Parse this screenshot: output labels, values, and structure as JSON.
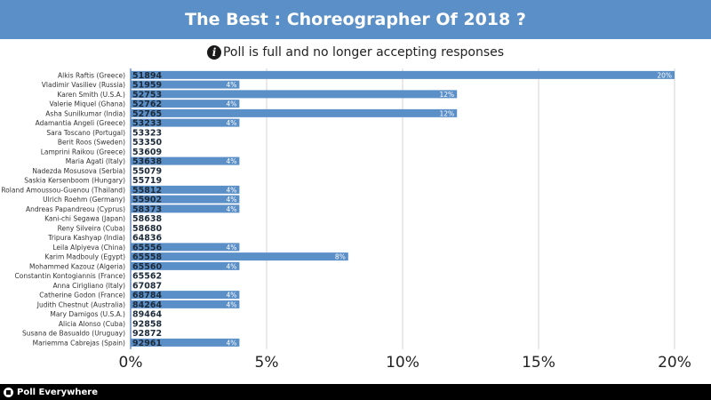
{
  "header": {
    "title": "The Best : Choreographer Of 2018 ?"
  },
  "notice": {
    "icon": "info-icon",
    "text": "Poll is full and no longer accepting responses"
  },
  "footer": {
    "brand": "Poll Everywhere",
    "icon": "poll-everywhere-logo-icon"
  },
  "colors": {
    "accent": "#5b8fc7",
    "footer": "#000000"
  },
  "chart_data": {
    "type": "bar",
    "orientation": "horizontal",
    "xlim": [
      0,
      20
    ],
    "x_ticks": [
      "0%",
      "5%",
      "10%",
      "15%",
      "20%"
    ],
    "grid": true,
    "rows": [
      {
        "label": "Alkis Raftis (Greece)",
        "code": "51894",
        "value": 20,
        "value_label": "20%"
      },
      {
        "label": "Vladimir Vasiliev (Russia)",
        "code": "51959",
        "value": 4,
        "value_label": "4%"
      },
      {
        "label": "Karen Smith (U.S.A.)",
        "code": "52753",
        "value": 12,
        "value_label": "12%"
      },
      {
        "label": "Valerie Miquel (Ghana)",
        "code": "52762",
        "value": 4,
        "value_label": "4%"
      },
      {
        "label": "Asha Sunilkumar (India)",
        "code": "52765",
        "value": 12,
        "value_label": "12%"
      },
      {
        "label": "Adamantia Angeli (Greece)",
        "code": "53233",
        "value": 4,
        "value_label": "4%"
      },
      {
        "label": "Sara Toscano (Portugal)",
        "code": "53323",
        "value": 0,
        "value_label": ""
      },
      {
        "label": "Berit Roos (Sweden)",
        "code": "53350",
        "value": 0,
        "value_label": ""
      },
      {
        "label": "Lamprini Raikou (Greece)",
        "code": "53609",
        "value": 0,
        "value_label": ""
      },
      {
        "label": "Maria Agati (Italy)",
        "code": "53638",
        "value": 4,
        "value_label": "4%"
      },
      {
        "label": "Nadezda Mosusova (Serbia)",
        "code": "55079",
        "value": 0,
        "value_label": ""
      },
      {
        "label": "Saskia Kersenboom (Hungary)",
        "code": "55719",
        "value": 0,
        "value_label": ""
      },
      {
        "label": "Roland Amoussou-Guenou (Thailand)",
        "code": "55812",
        "value": 4,
        "value_label": "4%"
      },
      {
        "label": "Ulrich Roehm (Germany)",
        "code": "55902",
        "value": 4,
        "value_label": "4%"
      },
      {
        "label": "Andreas Papandreou (Cyprus)",
        "code": "58373",
        "value": 4,
        "value_label": "4%"
      },
      {
        "label": "Kani-chi Segawa (Japan)",
        "code": "58638",
        "value": 0,
        "value_label": ""
      },
      {
        "label": "Reny Silveira (Cuba)",
        "code": "58680",
        "value": 0,
        "value_label": ""
      },
      {
        "label": "Tripura Kashyap (India)",
        "code": "64836",
        "value": 0,
        "value_label": ""
      },
      {
        "label": "Leila Alpiyeva (China)",
        "code": "65556",
        "value": 4,
        "value_label": "4%"
      },
      {
        "label": "Karim Madbouly (Egypt)",
        "code": "65558",
        "value": 8,
        "value_label": "8%"
      },
      {
        "label": "Mohammed Kazouz (Algeria)",
        "code": "65560",
        "value": 4,
        "value_label": "4%"
      },
      {
        "label": "Constantin Kontogiannis (France)",
        "code": "65562",
        "value": 0,
        "value_label": ""
      },
      {
        "label": "Anna Cirigliano (Italy)",
        "code": "67087",
        "value": 0,
        "value_label": ""
      },
      {
        "label": "Catherine Godon (France)",
        "code": "68784",
        "value": 4,
        "value_label": "4%"
      },
      {
        "label": "Judith Chestnut (Australia)",
        "code": "84264",
        "value": 4,
        "value_label": "4%"
      },
      {
        "label": "Mary Damigos (U.S.A.)",
        "code": "89464",
        "value": 0,
        "value_label": ""
      },
      {
        "label": "Alicia Alonso (Cuba)",
        "code": "92858",
        "value": 0,
        "value_label": ""
      },
      {
        "label": "Susana de Basualdo (Uruguay)",
        "code": "92872",
        "value": 0,
        "value_label": ""
      },
      {
        "label": "Mariemma Cabrejas (Spain)",
        "code": "92961",
        "value": 4,
        "value_label": "4%"
      }
    ]
  }
}
